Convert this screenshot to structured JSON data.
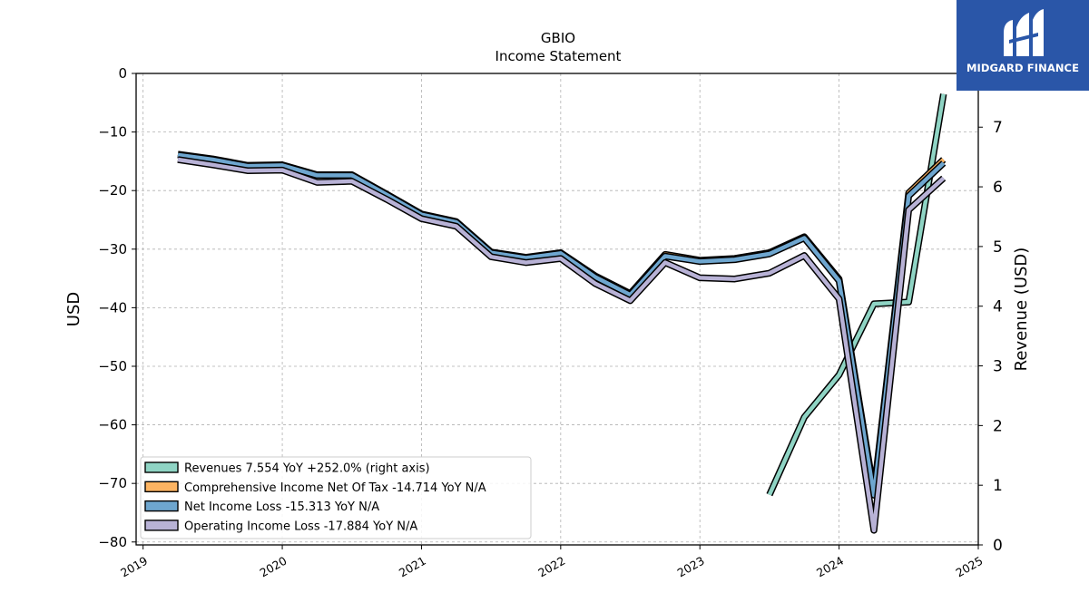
{
  "brand": {
    "name": "MIDGARD FINANCE",
    "background": "#2a56a8"
  },
  "chart_data": {
    "type": "line",
    "title": "GBIO",
    "subtitle": "Income Statement",
    "ylabel": "USD",
    "y2label": "Revenue (USD)",
    "xlim": [
      2018.95,
      2025.0
    ],
    "ylim": [
      -80.5,
      0
    ],
    "y2lim": [
      0,
      7.9
    ],
    "x_ticks": [
      "2019",
      "2020",
      "2021",
      "2022",
      "2023",
      "2024",
      "2025"
    ],
    "y_ticks": [
      0,
      -10,
      -20,
      -30,
      -40,
      -50,
      -60,
      -70,
      -80
    ],
    "y_tick_labels": [
      "0",
      "−10",
      "−20",
      "−30",
      "−40",
      "−50",
      "−60",
      "−70",
      "−80"
    ],
    "y2_ticks": [
      0,
      1,
      2,
      3,
      4,
      5,
      6,
      7
    ],
    "y2_tick_labels": [
      "0",
      "1",
      "2",
      "3",
      "4",
      "5",
      "6",
      "7"
    ],
    "grid": true,
    "legend_position": "lower-left",
    "series": [
      {
        "name": "Revenues",
        "legend": "Revenues  7.554 YoY +252.0% (right axis)",
        "axis": "right",
        "color": "#8fd4c4",
        "points": [
          [
            2023.5,
            0.84
          ],
          [
            2023.75,
            2.14
          ],
          [
            2024.0,
            2.85
          ],
          [
            2024.25,
            4.04
          ],
          [
            2024.5,
            4.07
          ],
          [
            2024.75,
            7.554
          ]
        ]
      },
      {
        "name": "Comprehensive Income Net Of Tax",
        "legend": "Comprehensive Income Net Of Tax  -14.714 YoY N/A",
        "axis": "left",
        "color": "#fdb462",
        "points": [
          [
            2019.25,
            -13.8
          ],
          [
            2019.5,
            -14.6
          ],
          [
            2019.75,
            -15.7
          ],
          [
            2020.0,
            -15.6
          ],
          [
            2020.25,
            -17.3
          ],
          [
            2020.5,
            -17.3
          ],
          [
            2020.75,
            -20.6
          ],
          [
            2021.0,
            -24.0
          ],
          [
            2021.25,
            -25.3
          ],
          [
            2021.5,
            -30.5
          ],
          [
            2021.75,
            -31.4
          ],
          [
            2022.0,
            -30.6
          ],
          [
            2022.25,
            -34.6
          ],
          [
            2022.5,
            -37.6
          ],
          [
            2022.75,
            -30.9
          ],
          [
            2023.0,
            -31.9
          ],
          [
            2023.25,
            -31.6
          ],
          [
            2023.5,
            -30.6
          ],
          [
            2023.75,
            -27.9
          ],
          [
            2024.0,
            -35.1
          ],
          [
            2024.25,
            -71.5
          ],
          [
            2024.5,
            -20.4
          ],
          [
            2024.75,
            -14.714
          ]
        ]
      },
      {
        "name": "Net Income Loss",
        "legend": "Net Income Loss  -15.313 YoY N/A",
        "axis": "left",
        "color": "#6ea6cf",
        "points": [
          [
            2019.25,
            -13.9
          ],
          [
            2019.5,
            -14.7
          ],
          [
            2019.75,
            -15.8
          ],
          [
            2020.0,
            -15.7
          ],
          [
            2020.25,
            -17.4
          ],
          [
            2020.5,
            -17.4
          ],
          [
            2020.75,
            -20.7
          ],
          [
            2021.0,
            -24.1
          ],
          [
            2021.25,
            -25.4
          ],
          [
            2021.5,
            -30.6
          ],
          [
            2021.75,
            -31.5
          ],
          [
            2022.0,
            -30.7
          ],
          [
            2022.25,
            -34.8
          ],
          [
            2022.5,
            -37.8
          ],
          [
            2022.75,
            -31.2
          ],
          [
            2023.0,
            -32.1
          ],
          [
            2023.25,
            -31.8
          ],
          [
            2023.5,
            -30.8
          ],
          [
            2023.75,
            -28.1
          ],
          [
            2024.0,
            -35.4
          ],
          [
            2024.25,
            -72.0
          ],
          [
            2024.5,
            -20.9
          ],
          [
            2024.75,
            -15.313
          ]
        ]
      },
      {
        "name": "Operating Income Loss",
        "legend": "Operating Income Loss  -17.884 YoY N/A",
        "axis": "left",
        "color": "#b8b2d6",
        "points": [
          [
            2019.25,
            -14.7
          ],
          [
            2019.5,
            -15.6
          ],
          [
            2019.75,
            -16.6
          ],
          [
            2020.0,
            -16.5
          ],
          [
            2020.25,
            -18.6
          ],
          [
            2020.5,
            -18.4
          ],
          [
            2020.75,
            -21.5
          ],
          [
            2021.0,
            -24.8
          ],
          [
            2021.25,
            -26.1
          ],
          [
            2021.5,
            -31.3
          ],
          [
            2021.75,
            -32.3
          ],
          [
            2022.0,
            -31.6
          ],
          [
            2022.25,
            -35.9
          ],
          [
            2022.5,
            -38.8
          ],
          [
            2022.75,
            -32.3
          ],
          [
            2023.0,
            -34.9
          ],
          [
            2023.25,
            -35.1
          ],
          [
            2023.5,
            -34.1
          ],
          [
            2023.75,
            -31.1
          ],
          [
            2024.0,
            -38.5
          ],
          [
            2024.25,
            -78.0
          ],
          [
            2024.5,
            -23.3
          ],
          [
            2024.75,
            -17.884
          ]
        ]
      }
    ]
  }
}
